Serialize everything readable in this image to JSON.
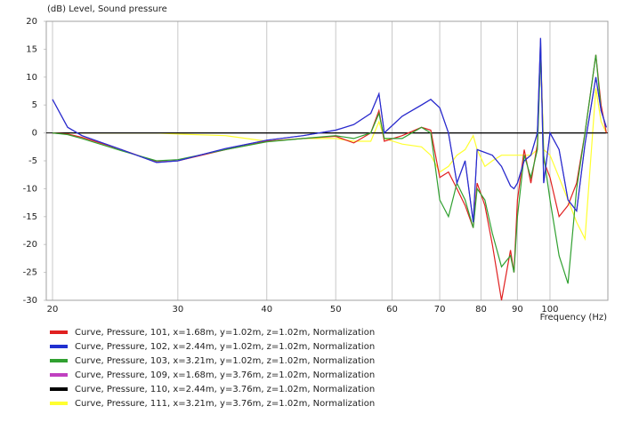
{
  "chart_data": {
    "type": "line",
    "title": "(dB)  Level, Sound pressure",
    "x_label": "Frequency  (Hz)",
    "xscale": "log",
    "grid": "x",
    "xlim": [
      19.6,
      120.6
    ],
    "ylim": [
      -30,
      20
    ],
    "xticks": [
      20,
      30,
      40,
      50,
      60,
      70,
      80,
      90,
      100
    ],
    "yticks": [
      -30,
      -25,
      -20,
      -15,
      -10,
      -5,
      0,
      5,
      10,
      15,
      20
    ],
    "x": [
      20,
      21,
      22,
      25,
      28,
      30,
      35,
      40,
      45,
      50,
      53,
      56,
      57.5,
      58.5,
      62,
      66,
      68,
      70,
      72,
      74,
      76,
      78,
      79,
      81,
      83,
      85.5,
      88,
      89,
      90,
      92,
      94,
      96,
      97,
      98,
      100,
      103,
      106,
      109,
      112,
      116,
      118,
      120
    ],
    "series": [
      {
        "name": "Curve, Pressure, 101, x=1.68m, y=1.02m, z=1.02m, Normalization",
        "color": "#e02020",
        "values": [
          0,
          -0.2,
          -0.8,
          -3,
          -5.2,
          -5,
          -3,
          -1.5,
          -1,
          -0.6,
          -1.8,
          0,
          4,
          -1.5,
          -0.5,
          1,
          0.5,
          -8,
          -7,
          -10,
          -13,
          -17,
          -9,
          -13,
          -20,
          -30,
          -21,
          -25,
          -12,
          -3,
          -9,
          -2,
          15,
          -5,
          -8,
          -15,
          -13,
          -9,
          0,
          14,
          5,
          0
        ]
      },
      {
        "name": "Curve, Pressure, 102, x=2.44m, y=1.02m, z=1.02m, Normalization",
        "color": "#2030d0",
        "values": [
          6,
          1,
          -0.5,
          -3,
          -5.3,
          -5,
          -2.8,
          -1.3,
          -0.5,
          0.5,
          1.5,
          3.5,
          7,
          0,
          3,
          5,
          6,
          4.5,
          0,
          -9,
          -5,
          -16,
          -3,
          -3.5,
          -4,
          -6,
          -9.5,
          -10,
          -9,
          -5,
          -4,
          0,
          17,
          -9,
          0,
          -3,
          -12,
          -14,
          -2,
          10,
          4,
          1
        ]
      },
      {
        "name": "Curve, Pressure, 103, x=3.21m, y=1.02m, z=1.02m, Normalization",
        "color": "#30a030",
        "values": [
          0,
          -0.3,
          -1,
          -3.2,
          -5,
          -4.8,
          -3,
          -1.6,
          -1,
          -0.5,
          -1,
          0,
          3.5,
          -1,
          -1,
          1,
          0,
          -12,
          -15,
          -9,
          -12,
          -17,
          -10,
          -12,
          -18,
          -24,
          -22,
          -25,
          -15,
          -4,
          -8,
          -3,
          14,
          -4,
          -12,
          -22,
          -27,
          -10,
          0,
          14,
          4,
          1
        ]
      },
      {
        "name": "Curve, Pressure, 109, x=1.68m, y=3.76m, z=1.02m, Normalization",
        "color": "#c040c0",
        "values": [
          6,
          1,
          -0.5,
          -3,
          -5.3,
          -5,
          -2.8,
          -1.3,
          -0.5,
          0.5,
          1.5,
          3.5,
          7,
          0,
          3,
          5,
          6,
          4.5,
          0,
          -9,
          -5,
          -16,
          -3,
          -3.5,
          -4,
          -6,
          -9.5,
          -10,
          -9,
          -5,
          -4,
          0,
          17,
          -9,
          0,
          -3,
          -12,
          -14,
          -2,
          10,
          4,
          1
        ]
      },
      {
        "name": "Curve, Pressure, 110, x=2.44m, y=3.76m, z=1.02m, Normalization",
        "color": "#000000",
        "values": [
          0,
          0,
          0,
          0,
          0,
          0,
          0,
          0,
          0,
          0,
          0,
          0,
          0,
          0,
          0,
          0,
          0,
          0,
          0,
          0,
          0,
          0,
          0,
          0,
          0,
          0,
          0,
          0,
          0,
          0,
          0,
          0,
          0,
          0,
          0,
          0,
          0,
          0,
          0,
          0,
          0,
          0
        ]
      },
      {
        "name": "Curve, Pressure, 111, x=3.21m, y=3.76m, z=1.02m, Normalization",
        "color": "#ffff30",
        "values": [
          0,
          0,
          0,
          0,
          0,
          -0.2,
          -0.5,
          -1.5,
          -1,
          -1,
          -1.5,
          -1.5,
          2,
          -1,
          -2,
          -2.5,
          -4,
          -7,
          -6,
          -4,
          -3,
          -0.5,
          -3,
          -6,
          -5,
          -4,
          -4,
          -4,
          -4,
          -4,
          -4,
          -3,
          16,
          -3,
          -4,
          -8,
          -12,
          -16,
          -19,
          8,
          2,
          0
        ]
      }
    ]
  }
}
